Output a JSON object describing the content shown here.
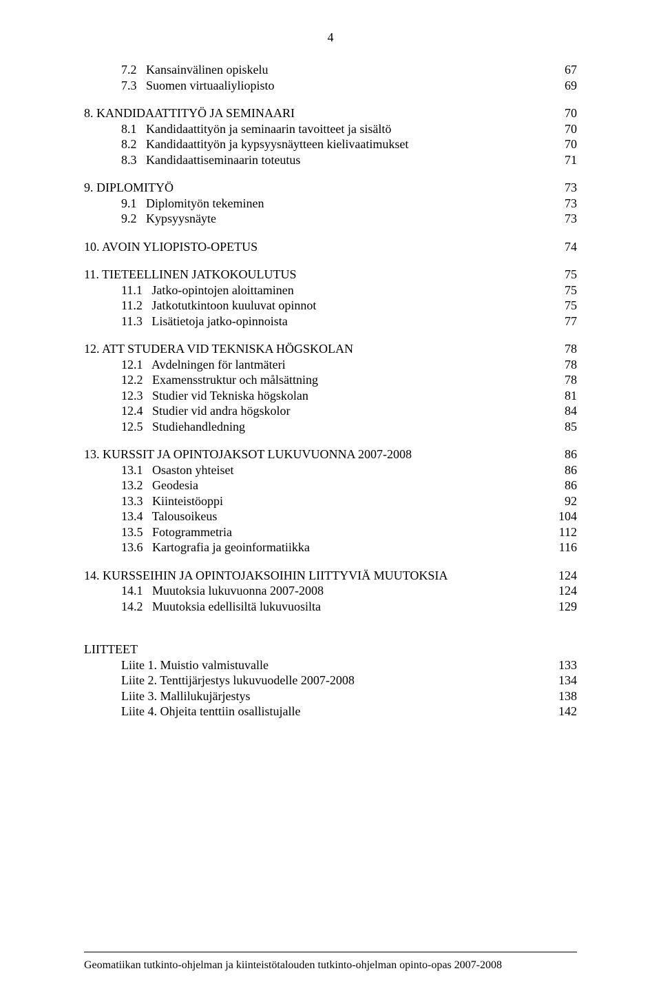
{
  "page_number": "4",
  "toc": [
    {
      "type": "sub",
      "num": "7.2",
      "label": "Kansainvälinen opiskelu",
      "page": "67"
    },
    {
      "type": "sub",
      "num": "7.3",
      "label": "Suomen virtuaaliyliopisto",
      "page": "69"
    },
    {
      "type": "gap"
    },
    {
      "type": "head",
      "num": "8.",
      "label": "KANDIDAATTITYÖ JA SEMINAARI",
      "page": "70"
    },
    {
      "type": "sub",
      "num": "8.1",
      "label": "Kandidaattityön ja seminaarin tavoitteet ja sisältö",
      "page": "70"
    },
    {
      "type": "sub",
      "num": "8.2",
      "label": "Kandidaattityön ja kypsyysnäytteen kielivaatimukset",
      "page": "70"
    },
    {
      "type": "sub",
      "num": "8.3",
      "label": "Kandidaattiseminaarin toteutus",
      "page": "71"
    },
    {
      "type": "gap"
    },
    {
      "type": "head",
      "num": "9.",
      "label": "DIPLOMITYÖ",
      "page": "73"
    },
    {
      "type": "sub",
      "num": "9.1",
      "label": "Diplomityön tekeminen",
      "page": "73"
    },
    {
      "type": "sub",
      "num": "9.2",
      "label": "Kypsyysnäyte",
      "page": "73"
    },
    {
      "type": "gap"
    },
    {
      "type": "head",
      "num": "10.",
      "label": "AVOIN YLIOPISTO-OPETUS",
      "page": "74"
    },
    {
      "type": "gap"
    },
    {
      "type": "head",
      "num": "11.",
      "label": "TIETEELLINEN JATKOKOULUTUS",
      "page": "75"
    },
    {
      "type": "sub",
      "num": "11.1",
      "label": "Jatko-opintojen aloittaminen",
      "page": "75"
    },
    {
      "type": "sub",
      "num": "11.2",
      "label": "Jatkotutkintoon kuuluvat opinnot",
      "page": "75"
    },
    {
      "type": "sub",
      "num": "11.3",
      "label": "Lisätietoja jatko-opinnoista",
      "page": "77"
    },
    {
      "type": "gap"
    },
    {
      "type": "head",
      "num": "12.",
      "label": "ATT STUDERA VID TEKNISKA HÖGSKOLAN",
      "page": "78"
    },
    {
      "type": "sub",
      "num": "12.1",
      "label": "Avdelningen för lantmäteri",
      "page": "78"
    },
    {
      "type": "sub",
      "num": "12.2",
      "label": "Examensstruktur och målsättning",
      "page": "78"
    },
    {
      "type": "sub",
      "num": "12.3",
      "label": "Studier vid Tekniska högskolan",
      "page": "81"
    },
    {
      "type": "sub",
      "num": "12.4",
      "label": "Studier vid andra högskolor",
      "page": "84"
    },
    {
      "type": "sub",
      "num": "12.5",
      "label": "Studiehandledning",
      "page": "85"
    },
    {
      "type": "gap"
    },
    {
      "type": "head",
      "num": "13.",
      "label": "KURSSIT JA OPINTOJAKSOT LUKUVUONNA 2007-2008",
      "page": "86"
    },
    {
      "type": "sub",
      "num": "13.1",
      "label": "Osaston yhteiset",
      "page": "86"
    },
    {
      "type": "sub",
      "num": "13.2",
      "label": "Geodesia",
      "page": "86"
    },
    {
      "type": "sub",
      "num": "13.3",
      "label": "Kiinteistöoppi",
      "page": "92"
    },
    {
      "type": "sub",
      "num": "13.4",
      "label": "Talousoikeus",
      "page": "104"
    },
    {
      "type": "sub",
      "num": "13.5",
      "label": "Fotogrammetria",
      "page": "112"
    },
    {
      "type": "sub",
      "num": "13.6",
      "label": "Kartografia ja geoinformatiikka",
      "page": "116"
    },
    {
      "type": "gap"
    },
    {
      "type": "head",
      "num": "14.",
      "label": "KURSSEIHIN JA OPINTOJAKSOIHIN LIITTYVIÄ MUUTOKSIA",
      "page": "124"
    },
    {
      "type": "sub",
      "num": "14.1",
      "label": "Muutoksia lukuvuonna 2007-2008",
      "page": "124"
    },
    {
      "type": "sub",
      "num": "14.2",
      "label": "Muutoksia edellisiltä lukuvuosilta",
      "page": "129"
    }
  ],
  "liitteet": {
    "title": "LIITTEET",
    "items": [
      {
        "label": "Liite 1. Muistio valmistuvalle",
        "page": "133"
      },
      {
        "label": "Liite 2. Tenttijärjestys lukuvuodelle 2007-2008",
        "page": "134"
      },
      {
        "label": "Liite 3. Mallilukujärjestys",
        "page": "138"
      },
      {
        "label": "Liite 4. Ohjeita tenttiin osallistujalle",
        "page": "142"
      }
    ]
  },
  "footer": "Geomatiikan tutkinto-ohjelman ja kiinteistötalouden tutkinto-ohjelman opinto-opas 2007-2008"
}
